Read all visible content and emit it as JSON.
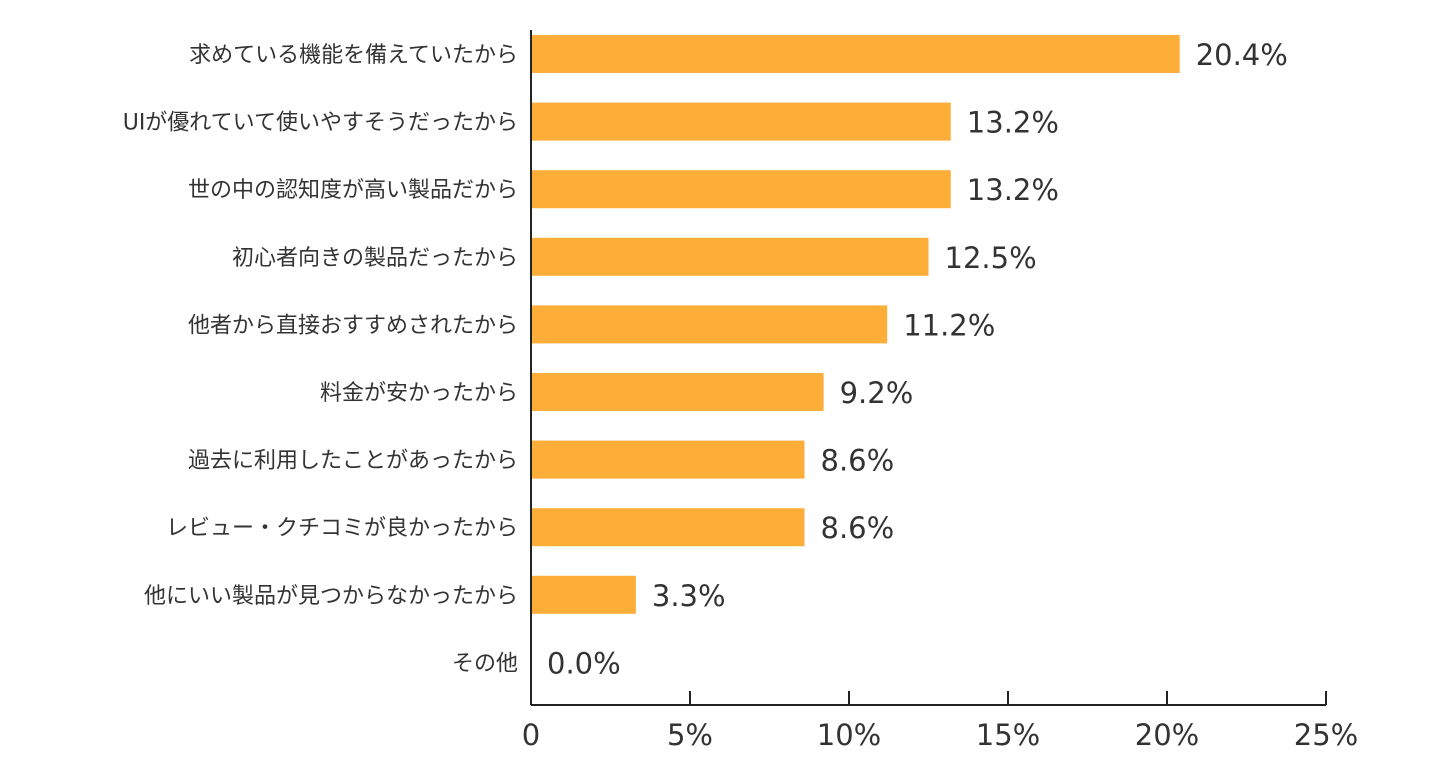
{
  "chart_data": {
    "type": "bar",
    "orientation": "horizontal",
    "categories": [
      "求めている機能を備えていたから",
      "UIが優れていて使いやすそうだったから",
      "世の中の認知度が高い製品だから",
      "初心者向きの製品だったから",
      "他者から直接おすすめされたから",
      "料金が安かったから",
      "過去に利用したことがあったから",
      "レビュー・クチコミが良かったから",
      "他にいい製品が見つからなかったから",
      "その他"
    ],
    "values": [
      20.4,
      13.2,
      13.2,
      12.5,
      11.2,
      9.2,
      8.6,
      8.6,
      3.3,
      0.0
    ],
    "value_labels": [
      "20.4%",
      "13.2%",
      "13.2%",
      "12.5%",
      "11.2%",
      "9.2%",
      "8.6%",
      "8.6%",
      "3.3%",
      "0.0%"
    ],
    "xlim": [
      0,
      25
    ],
    "x_ticks": [
      0,
      5,
      10,
      15,
      20,
      25
    ],
    "x_tick_labels": [
      "0",
      "5%",
      "10%",
      "15%",
      "20%",
      "25%"
    ],
    "title": "",
    "xlabel": "",
    "ylabel": "",
    "grid": false,
    "legend": "none",
    "bar_color": "#FDAE38"
  }
}
